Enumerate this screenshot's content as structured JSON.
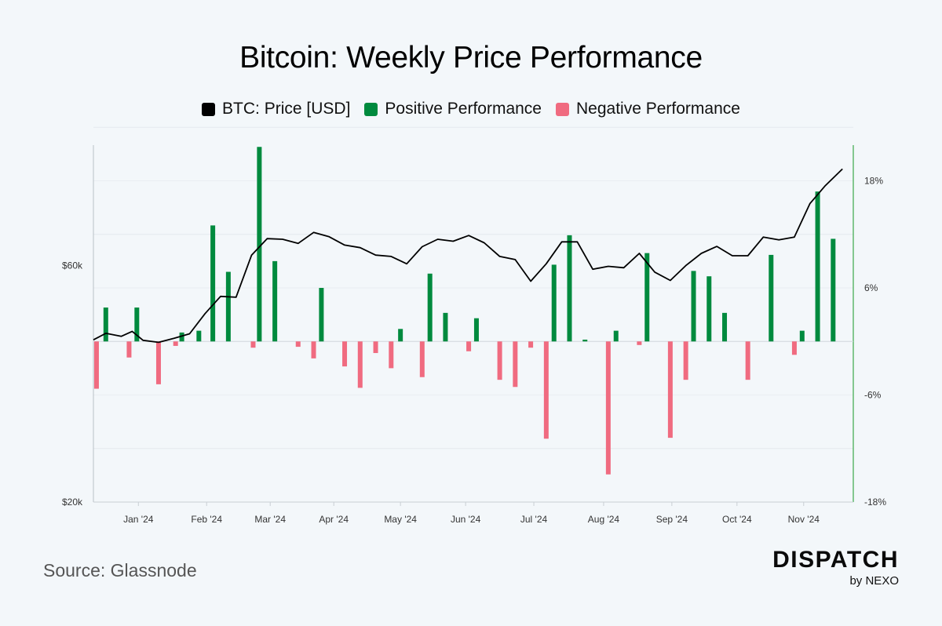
{
  "chart_data": {
    "type": "bar+line",
    "title": "Bitcoin: Weekly Price Performance",
    "legend": [
      {
        "key": "price",
        "label": "BTC: Price [USD]",
        "color": "#000000"
      },
      {
        "key": "pos",
        "label": "Positive Performance",
        "color": "#008a3e"
      },
      {
        "key": "neg",
        "label": "Negative Performance",
        "color": "#f06b80"
      }
    ],
    "colors": {
      "price": "#000000",
      "positive": "#008a3e",
      "negative": "#f06b80",
      "right_axis": "#3aa84a",
      "grid": "#e4e9ee"
    },
    "x_labels": [
      "Jan '24",
      "Feb '24",
      "Mar '24",
      "Apr '24",
      "May '24",
      "Jun '24",
      "Jul '24",
      "Aug '24",
      "Sep '24",
      "Oct '24",
      "Nov '24"
    ],
    "x_label_weeks": [
      2.9,
      7.3,
      11.4,
      15.5,
      19.8,
      24.0,
      28.4,
      32.9,
      37.3,
      41.5,
      45.8
    ],
    "left_axis": {
      "ticks": [
        "$20k",
        "$60k"
      ],
      "tick_values": [
        20000,
        60000
      ],
      "scale": "log",
      "range": [
        20000,
        105000
      ]
    },
    "right_axis": {
      "ticks": [
        "18%",
        "6%",
        "-6%",
        "-18%"
      ],
      "tick_values": [
        18,
        6,
        -6,
        -18
      ],
      "range": [
        -18,
        22
      ]
    },
    "weeks": 49,
    "price_points": [
      [
        0,
        42500
      ],
      [
        0.8,
        43800
      ],
      [
        1.8,
        43200
      ],
      [
        2.5,
        44200
      ],
      [
        3.2,
        42400
      ],
      [
        4.2,
        42000
      ],
      [
        5.2,
        42800
      ],
      [
        6.2,
        43700
      ],
      [
        7.2,
        48000
      ],
      [
        8.2,
        52000
      ],
      [
        9.2,
        51800
      ],
      [
        10.2,
        63000
      ],
      [
        11.2,
        68000
      ],
      [
        12.2,
        67800
      ],
      [
        13.2,
        66500
      ],
      [
        14.2,
        70000
      ],
      [
        15.2,
        68600
      ],
      [
        16.2,
        66000
      ],
      [
        17.2,
        65200
      ],
      [
        18.2,
        63000
      ],
      [
        19.2,
        62600
      ],
      [
        20.2,
        60500
      ],
      [
        21.2,
        65500
      ],
      [
        22.2,
        67800
      ],
      [
        23.2,
        67200
      ],
      [
        24.2,
        69000
      ],
      [
        25.2,
        66700
      ],
      [
        26.2,
        62600
      ],
      [
        27.2,
        61700
      ],
      [
        28.2,
        55800
      ],
      [
        29.2,
        60500
      ],
      [
        30.2,
        67000
      ],
      [
        31.2,
        67000
      ],
      [
        32.2,
        59000
      ],
      [
        33.2,
        59800
      ],
      [
        34.2,
        59400
      ],
      [
        35.2,
        63500
      ],
      [
        36.2,
        58200
      ],
      [
        37.2,
        56000
      ],
      [
        38.2,
        60000
      ],
      [
        39.2,
        63500
      ],
      [
        40.2,
        65600
      ],
      [
        41.2,
        62800
      ],
      [
        42.2,
        62800
      ],
      [
        43.2,
        68500
      ],
      [
        44.2,
        67600
      ],
      [
        45.2,
        68500
      ],
      [
        46.2,
        80000
      ],
      [
        47.2,
        87000
      ],
      [
        48.3,
        94000
      ]
    ],
    "performance": [
      {
        "week": 0.2,
        "value": -5.3
      },
      {
        "week": 0.8,
        "value": 3.8
      },
      {
        "week": 2.3,
        "value": -1.8
      },
      {
        "week": 2.8,
        "value": 3.8
      },
      {
        "week": 4.2,
        "value": -4.8
      },
      {
        "week": 5.3,
        "value": -0.5
      },
      {
        "week": 5.7,
        "value": 1.0
      },
      {
        "week": 6.8,
        "value": 1.2
      },
      {
        "week": 7.7,
        "value": 13.0
      },
      {
        "week": 8.7,
        "value": 7.8
      },
      {
        "week": 10.3,
        "value": -0.7
      },
      {
        "week": 10.7,
        "value": 21.8
      },
      {
        "week": 11.7,
        "value": 9.0
      },
      {
        "week": 13.2,
        "value": -0.6
      },
      {
        "week": 14.2,
        "value": -1.9
      },
      {
        "week": 14.7,
        "value": 6.0
      },
      {
        "week": 16.2,
        "value": -2.8
      },
      {
        "week": 17.2,
        "value": -5.2
      },
      {
        "week": 18.2,
        "value": -1.3
      },
      {
        "week": 19.2,
        "value": -3.0
      },
      {
        "week": 19.8,
        "value": 1.4
      },
      {
        "week": 21.2,
        "value": -4.0
      },
      {
        "week": 21.7,
        "value": 7.6
      },
      {
        "week": 22.7,
        "value": 3.2
      },
      {
        "week": 24.2,
        "value": -1.1
      },
      {
        "week": 24.7,
        "value": 2.6
      },
      {
        "week": 26.2,
        "value": -4.3
      },
      {
        "week": 27.2,
        "value": -5.1
      },
      {
        "week": 28.2,
        "value": -0.7
      },
      {
        "week": 29.2,
        "value": -10.9
      },
      {
        "week": 29.7,
        "value": 8.6
      },
      {
        "week": 30.7,
        "value": 11.9
      },
      {
        "week": 31.7,
        "value": 0.2
      },
      {
        "week": 33.2,
        "value": -14.9
      },
      {
        "week": 33.7,
        "value": 1.2
      },
      {
        "week": 35.2,
        "value": -0.4
      },
      {
        "week": 35.7,
        "value": 9.9
      },
      {
        "week": 37.2,
        "value": -10.8
      },
      {
        "week": 38.2,
        "value": -4.3
      },
      {
        "week": 38.7,
        "value": 7.9
      },
      {
        "week": 39.7,
        "value": 7.3
      },
      {
        "week": 40.7,
        "value": 3.2
      },
      {
        "week": 42.2,
        "value": -4.3
      },
      {
        "week": 43.7,
        "value": 9.7
      },
      {
        "week": 45.2,
        "value": -1.5
      },
      {
        "week": 45.7,
        "value": 1.2
      },
      {
        "week": 46.7,
        "value": 16.8
      },
      {
        "week": 47.7,
        "value": 11.5
      }
    ]
  },
  "footer": {
    "source": "Source: Glassnode",
    "brand_name": "DISPATCH",
    "brand_sub": "by NEXO"
  }
}
